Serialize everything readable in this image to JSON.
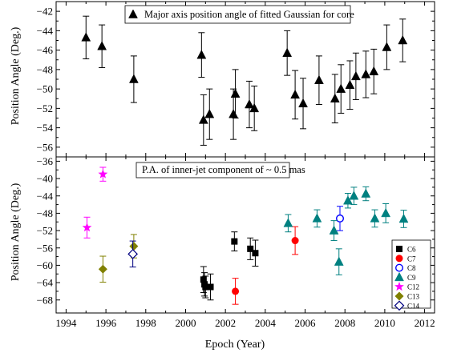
{
  "chart_data": [
    {
      "type": "scatter",
      "title": "Major axis position angle of fitted Gaussian for core",
      "ylabel": "Position Angle (Deg.)",
      "xlabel": "",
      "xlim": [
        1993.5,
        2012.5
      ],
      "ylim": [
        -57,
        -41
      ],
      "yticks": [
        -42,
        -44,
        -46,
        -48,
        -50,
        -52,
        -54,
        -56
      ],
      "grid": false,
      "legend": "top-center",
      "series": [
        {
          "marker": "triangle-filled",
          "color": "#000000",
          "x": [
            1995.0,
            1995.8,
            1997.4,
            2000.8,
            2000.9,
            2001.2,
            2002.4,
            2002.5,
            2003.2,
            2003.45,
            2005.1,
            2005.5,
            2005.9,
            2006.7,
            2007.5,
            2007.8,
            2008.25,
            2008.55,
            2009.05,
            2009.45,
            2010.1,
            2010.9
          ],
          "y": [
            -44.7,
            -45.6,
            -49.0,
            -46.5,
            -53.2,
            -52.6,
            -52.6,
            -50.5,
            -51.6,
            -52.0,
            -46.3,
            -50.6,
            -51.5,
            -49.1,
            -51.0,
            -50.0,
            -49.6,
            -48.7,
            -48.5,
            -48.2,
            -45.7,
            -45.0
          ],
          "yerr": [
            2.2,
            2.2,
            2.4,
            2.3,
            2.6,
            2.6,
            2.6,
            2.5,
            2.4,
            2.3,
            2.3,
            2.5,
            2.6,
            2.5,
            2.5,
            2.5,
            2.5,
            2.4,
            2.4,
            2.3,
            2.3,
            2.2
          ]
        }
      ]
    },
    {
      "type": "scatter",
      "title": "P.A. of inner-jet component of  ~ 0.5 mas",
      "ylabel": "Position Angle (Deg.)",
      "xlabel": "Epoch (Year)",
      "xlim": [
        1993.5,
        2012.5
      ],
      "ylim": [
        -71,
        -35
      ],
      "yticks": [
        -36,
        -40,
        -44,
        -48,
        -52,
        -56,
        -60,
        -64,
        -68
      ],
      "xticks": [
        1994,
        1996,
        1998,
        2000,
        2002,
        2004,
        2006,
        2008,
        2010,
        2012
      ],
      "grid": false,
      "legend": "right",
      "series": [
        {
          "name": "C6",
          "marker": "square-filled",
          "color": "#000000",
          "x": [
            2000.9,
            2000.95,
            2001.0,
            2001.25,
            2002.45,
            2003.25,
            2003.5
          ],
          "y": [
            -63.3,
            -64.4,
            -65.0,
            -65.0,
            -54.5,
            -56.2,
            -57.2
          ],
          "yerr": [
            3.0,
            2.7,
            2.5,
            3.0,
            2.2,
            2.5,
            3.0
          ]
        },
        {
          "name": "C7",
          "marker": "circle-filled",
          "color": "#ff0000",
          "x": [
            2002.5,
            2005.5
          ],
          "y": [
            -66.0,
            -54.3
          ],
          "yerr": [
            3.0,
            3.2
          ]
        },
        {
          "name": "C8",
          "marker": "circle-open",
          "color": "#0000ff",
          "x": [
            2007.75
          ],
          "y": [
            -49.2
          ],
          "yerr": [
            2.8
          ]
        },
        {
          "name": "C9",
          "marker": "triangle-filled",
          "color": "#008080",
          "x": [
            2005.15,
            2006.6,
            2007.45,
            2007.7,
            2008.15,
            2008.45,
            2009.05,
            2009.5,
            2010.05,
            2010.95
          ],
          "y": [
            -50.3,
            -49.2,
            -52.0,
            -59.2,
            -45.1,
            -44.0,
            -43.5,
            -49.2,
            -48.0,
            -49.3
          ],
          "yerr": [
            2.0,
            2.0,
            2.3,
            3.0,
            1.7,
            2.0,
            1.6,
            2.0,
            2.2,
            2.0
          ]
        },
        {
          "name": "C12",
          "marker": "star",
          "color": "#ff00ff",
          "x": [
            1995.05,
            1995.85
          ],
          "y": [
            -51.3,
            -39.0
          ],
          "yerr": [
            2.4,
            1.6
          ]
        },
        {
          "name": "C13",
          "marker": "diamond-filled",
          "color": "#808000",
          "x": [
            1995.85,
            1997.4
          ],
          "y": [
            -60.9,
            -55.6
          ],
          "yerr": [
            3.0,
            2.7
          ]
        },
        {
          "name": "C14",
          "marker": "diamond-open",
          "color": "#000080",
          "x": [
            1997.35
          ],
          "y": [
            -57.4
          ],
          "yerr": [
            3.0
          ]
        }
      ]
    }
  ]
}
